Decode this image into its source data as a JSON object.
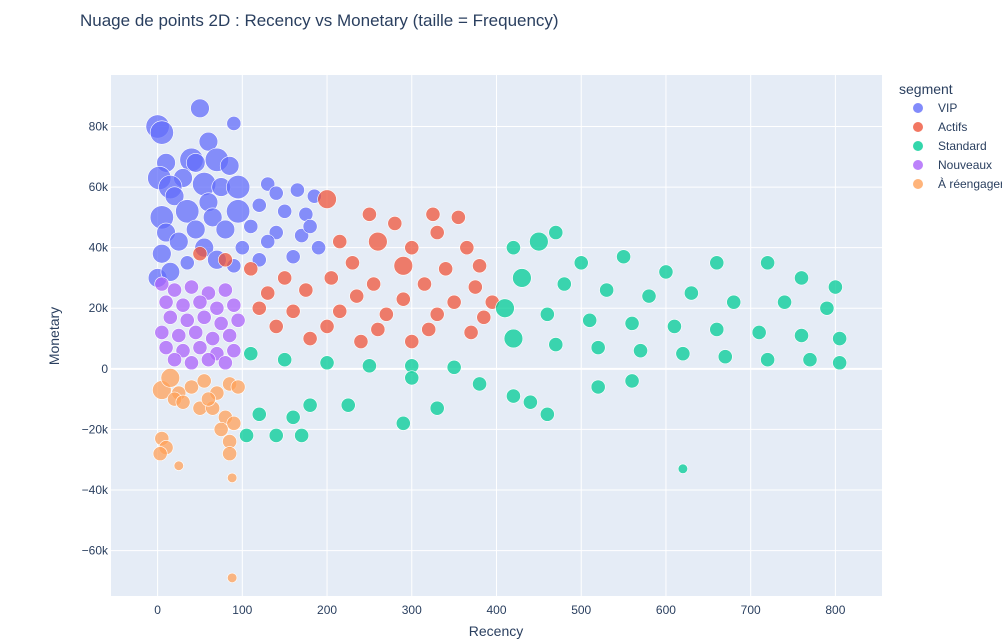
{
  "chart_data": {
    "type": "scatter",
    "title": "Nuage de points 2D : Recency vs Monetary (taille = Frequency)",
    "xlabel": "Recency",
    "ylabel": "Monetary",
    "xlim": [
      -55,
      855
    ],
    "ylim": [
      -75000,
      97000
    ],
    "x_ticks": [
      0,
      100,
      200,
      300,
      400,
      500,
      600,
      700,
      800
    ],
    "x_tick_labels": [
      "0",
      "100",
      "200",
      "300",
      "400",
      "500",
      "600",
      "700",
      "800"
    ],
    "y_ticks": [
      80000,
      60000,
      40000,
      20000,
      0,
      -20000,
      -40000,
      -60000
    ],
    "y_tick_labels": [
      "80k",
      "60k",
      "40k",
      "20k",
      "0",
      "−20k",
      "−40k",
      "−60k"
    ],
    "grid": true,
    "legend_title": "segment",
    "legend_position": "right",
    "series": [
      {
        "name": "VIP",
        "color": "#636efa",
        "points": [
          [
            0,
            80000,
            4
          ],
          [
            5,
            78000,
            4
          ],
          [
            50,
            86000,
            3
          ],
          [
            90,
            81000,
            2
          ],
          [
            60,
            75000,
            3
          ],
          [
            70,
            69000,
            4
          ],
          [
            40,
            69000,
            4
          ],
          [
            45,
            68000,
            3
          ],
          [
            10,
            68000,
            3
          ],
          [
            85,
            67000,
            3
          ],
          [
            2,
            63000,
            4
          ],
          [
            30,
            63000,
            3
          ],
          [
            15,
            60000,
            4
          ],
          [
            55,
            61000,
            4
          ],
          [
            75,
            60000,
            3
          ],
          [
            95,
            60000,
            4
          ],
          [
            130,
            61000,
            2
          ],
          [
            140,
            58000,
            2
          ],
          [
            165,
            59000,
            2
          ],
          [
            185,
            57000,
            2
          ],
          [
            20,
            57000,
            3
          ],
          [
            60,
            55000,
            3
          ],
          [
            95,
            52000,
            4
          ],
          [
            120,
            54000,
            2
          ],
          [
            5,
            50000,
            4
          ],
          [
            35,
            52000,
            4
          ],
          [
            65,
            50000,
            3
          ],
          [
            150,
            52000,
            2
          ],
          [
            175,
            51000,
            2
          ],
          [
            10,
            45000,
            3
          ],
          [
            45,
            46000,
            3
          ],
          [
            80,
            46000,
            3
          ],
          [
            110,
            47000,
            2
          ],
          [
            140,
            45000,
            2
          ],
          [
            170,
            44000,
            2
          ],
          [
            25,
            42000,
            3
          ],
          [
            55,
            40000,
            3
          ],
          [
            100,
            40000,
            2
          ],
          [
            190,
            40000,
            2
          ],
          [
            5,
            38000,
            3
          ],
          [
            70,
            36000,
            3
          ],
          [
            120,
            36000,
            2
          ],
          [
            160,
            37000,
            2
          ],
          [
            35,
            35000,
            2
          ],
          [
            90,
            34000,
            2
          ],
          [
            130,
            42000,
            2
          ],
          [
            180,
            47000,
            2
          ],
          [
            0,
            30000,
            3
          ],
          [
            15,
            32000,
            3
          ]
        ]
      },
      {
        "name": "Actifs",
        "color": "#ef553b",
        "points": [
          [
            200,
            56000,
            3
          ],
          [
            250,
            51000,
            2
          ],
          [
            325,
            51000,
            2
          ],
          [
            355,
            50000,
            2
          ],
          [
            280,
            48000,
            2
          ],
          [
            330,
            45000,
            2
          ],
          [
            215,
            42000,
            2
          ],
          [
            260,
            42000,
            3
          ],
          [
            300,
            40000,
            2
          ],
          [
            365,
            40000,
            2
          ],
          [
            230,
            35000,
            2
          ],
          [
            290,
            34000,
            3
          ],
          [
            340,
            33000,
            2
          ],
          [
            380,
            34000,
            2
          ],
          [
            110,
            33000,
            2
          ],
          [
            150,
            30000,
            2
          ],
          [
            205,
            30000,
            2
          ],
          [
            255,
            28000,
            2
          ],
          [
            315,
            28000,
            2
          ],
          [
            375,
            27000,
            2
          ],
          [
            130,
            25000,
            2
          ],
          [
            175,
            26000,
            2
          ],
          [
            235,
            24000,
            2
          ],
          [
            290,
            23000,
            2
          ],
          [
            350,
            22000,
            2
          ],
          [
            395,
            22000,
            2
          ],
          [
            120,
            20000,
            2
          ],
          [
            160,
            19000,
            2
          ],
          [
            215,
            19000,
            2
          ],
          [
            270,
            18000,
            2
          ],
          [
            330,
            18000,
            2
          ],
          [
            385,
            17000,
            2
          ],
          [
            140,
            14000,
            2
          ],
          [
            200,
            14000,
            2
          ],
          [
            260,
            13000,
            2
          ],
          [
            320,
            13000,
            2
          ],
          [
            370,
            12000,
            2
          ],
          [
            180,
            10000,
            2
          ],
          [
            240,
            9000,
            2
          ],
          [
            300,
            9000,
            2
          ],
          [
            50,
            38000,
            2
          ],
          [
            80,
            36000,
            2
          ]
        ]
      },
      {
        "name": "Standard",
        "color": "#00cc96",
        "points": [
          [
            450,
            42000,
            3
          ],
          [
            470,
            45000,
            2
          ],
          [
            420,
            40000,
            2
          ],
          [
            500,
            35000,
            2
          ],
          [
            550,
            37000,
            2
          ],
          [
            600,
            32000,
            2
          ],
          [
            660,
            35000,
            2
          ],
          [
            720,
            35000,
            2
          ],
          [
            760,
            30000,
            2
          ],
          [
            800,
            27000,
            2
          ],
          [
            430,
            30000,
            3
          ],
          [
            480,
            28000,
            2
          ],
          [
            530,
            26000,
            2
          ],
          [
            580,
            24000,
            2
          ],
          [
            630,
            25000,
            2
          ],
          [
            680,
            22000,
            2
          ],
          [
            740,
            22000,
            2
          ],
          [
            790,
            20000,
            2
          ],
          [
            410,
            20000,
            3
          ],
          [
            460,
            18000,
            2
          ],
          [
            510,
            16000,
            2
          ],
          [
            560,
            15000,
            2
          ],
          [
            610,
            14000,
            2
          ],
          [
            660,
            13000,
            2
          ],
          [
            710,
            12000,
            2
          ],
          [
            760,
            11000,
            2
          ],
          [
            805,
            10000,
            2
          ],
          [
            420,
            10000,
            3
          ],
          [
            470,
            8000,
            2
          ],
          [
            520,
            7000,
            2
          ],
          [
            570,
            6000,
            2
          ],
          [
            620,
            5000,
            2
          ],
          [
            670,
            4000,
            2
          ],
          [
            720,
            3000,
            2
          ],
          [
            770,
            3000,
            2
          ],
          [
            805,
            2000,
            2
          ],
          [
            110,
            5000,
            2
          ],
          [
            150,
            3000,
            2
          ],
          [
            200,
            2000,
            2
          ],
          [
            250,
            1000,
            2
          ],
          [
            300,
            1000,
            2
          ],
          [
            350,
            500,
            2
          ],
          [
            120,
            -15000,
            2
          ],
          [
            140,
            -22000,
            2
          ],
          [
            170,
            -22000,
            2
          ],
          [
            160,
            -16000,
            2
          ],
          [
            105,
            -22000,
            2
          ],
          [
            180,
            -12000,
            2
          ],
          [
            225,
            -12000,
            2
          ],
          [
            290,
            -18000,
            2
          ],
          [
            330,
            -13000,
            2
          ],
          [
            440,
            -11000,
            2
          ],
          [
            460,
            -15000,
            2
          ],
          [
            520,
            -6000,
            2
          ],
          [
            560,
            -4000,
            2
          ],
          [
            620,
            -33000,
            1
          ],
          [
            300,
            -3000,
            2
          ],
          [
            380,
            -5000,
            2
          ],
          [
            420,
            -9000,
            2
          ]
        ]
      },
      {
        "name": "Nouveaux",
        "color": "#ab63fa",
        "points": [
          [
            5,
            28000,
            2
          ],
          [
            20,
            26000,
            2
          ],
          [
            40,
            27000,
            2
          ],
          [
            60,
            25000,
            2
          ],
          [
            80,
            26000,
            2
          ],
          [
            10,
            22000,
            2
          ],
          [
            30,
            21000,
            2
          ],
          [
            50,
            22000,
            2
          ],
          [
            70,
            20000,
            2
          ],
          [
            90,
            21000,
            2
          ],
          [
            15,
            17000,
            2
          ],
          [
            35,
            16000,
            2
          ],
          [
            55,
            17000,
            2
          ],
          [
            75,
            15000,
            2
          ],
          [
            95,
            16000,
            2
          ],
          [
            5,
            12000,
            2
          ],
          [
            25,
            11000,
            2
          ],
          [
            45,
            12000,
            2
          ],
          [
            65,
            10000,
            2
          ],
          [
            85,
            11000,
            2
          ],
          [
            10,
            7000,
            2
          ],
          [
            30,
            6000,
            2
          ],
          [
            50,
            7000,
            2
          ],
          [
            70,
            5000,
            2
          ],
          [
            90,
            6000,
            2
          ],
          [
            20,
            3000,
            2
          ],
          [
            40,
            2000,
            2
          ],
          [
            60,
            3000,
            2
          ],
          [
            80,
            2000,
            2
          ]
        ]
      },
      {
        "name": "À réengager",
        "color": "#ffa15a",
        "points": [
          [
            5,
            -7000,
            3
          ],
          [
            15,
            -3000,
            3
          ],
          [
            25,
            -8000,
            2
          ],
          [
            40,
            -6000,
            2
          ],
          [
            55,
            -4000,
            2
          ],
          [
            70,
            -8000,
            2
          ],
          [
            85,
            -5000,
            2
          ],
          [
            95,
            -6000,
            2
          ],
          [
            20,
            -10000,
            2
          ],
          [
            30,
            -11000,
            2
          ],
          [
            50,
            -13000,
            2
          ],
          [
            65,
            -13000,
            2
          ],
          [
            80,
            -16000,
            2
          ],
          [
            90,
            -18000,
            2
          ],
          [
            75,
            -20000,
            2
          ],
          [
            85,
            -24000,
            2
          ],
          [
            5,
            -23000,
            2
          ],
          [
            10,
            -26000,
            2
          ],
          [
            3,
            -28000,
            2
          ],
          [
            25,
            -32000,
            1
          ],
          [
            85,
            -28000,
            2
          ],
          [
            88,
            -36000,
            1
          ],
          [
            88,
            -69000,
            1
          ],
          [
            60,
            -10000,
            2
          ]
        ]
      }
    ]
  }
}
